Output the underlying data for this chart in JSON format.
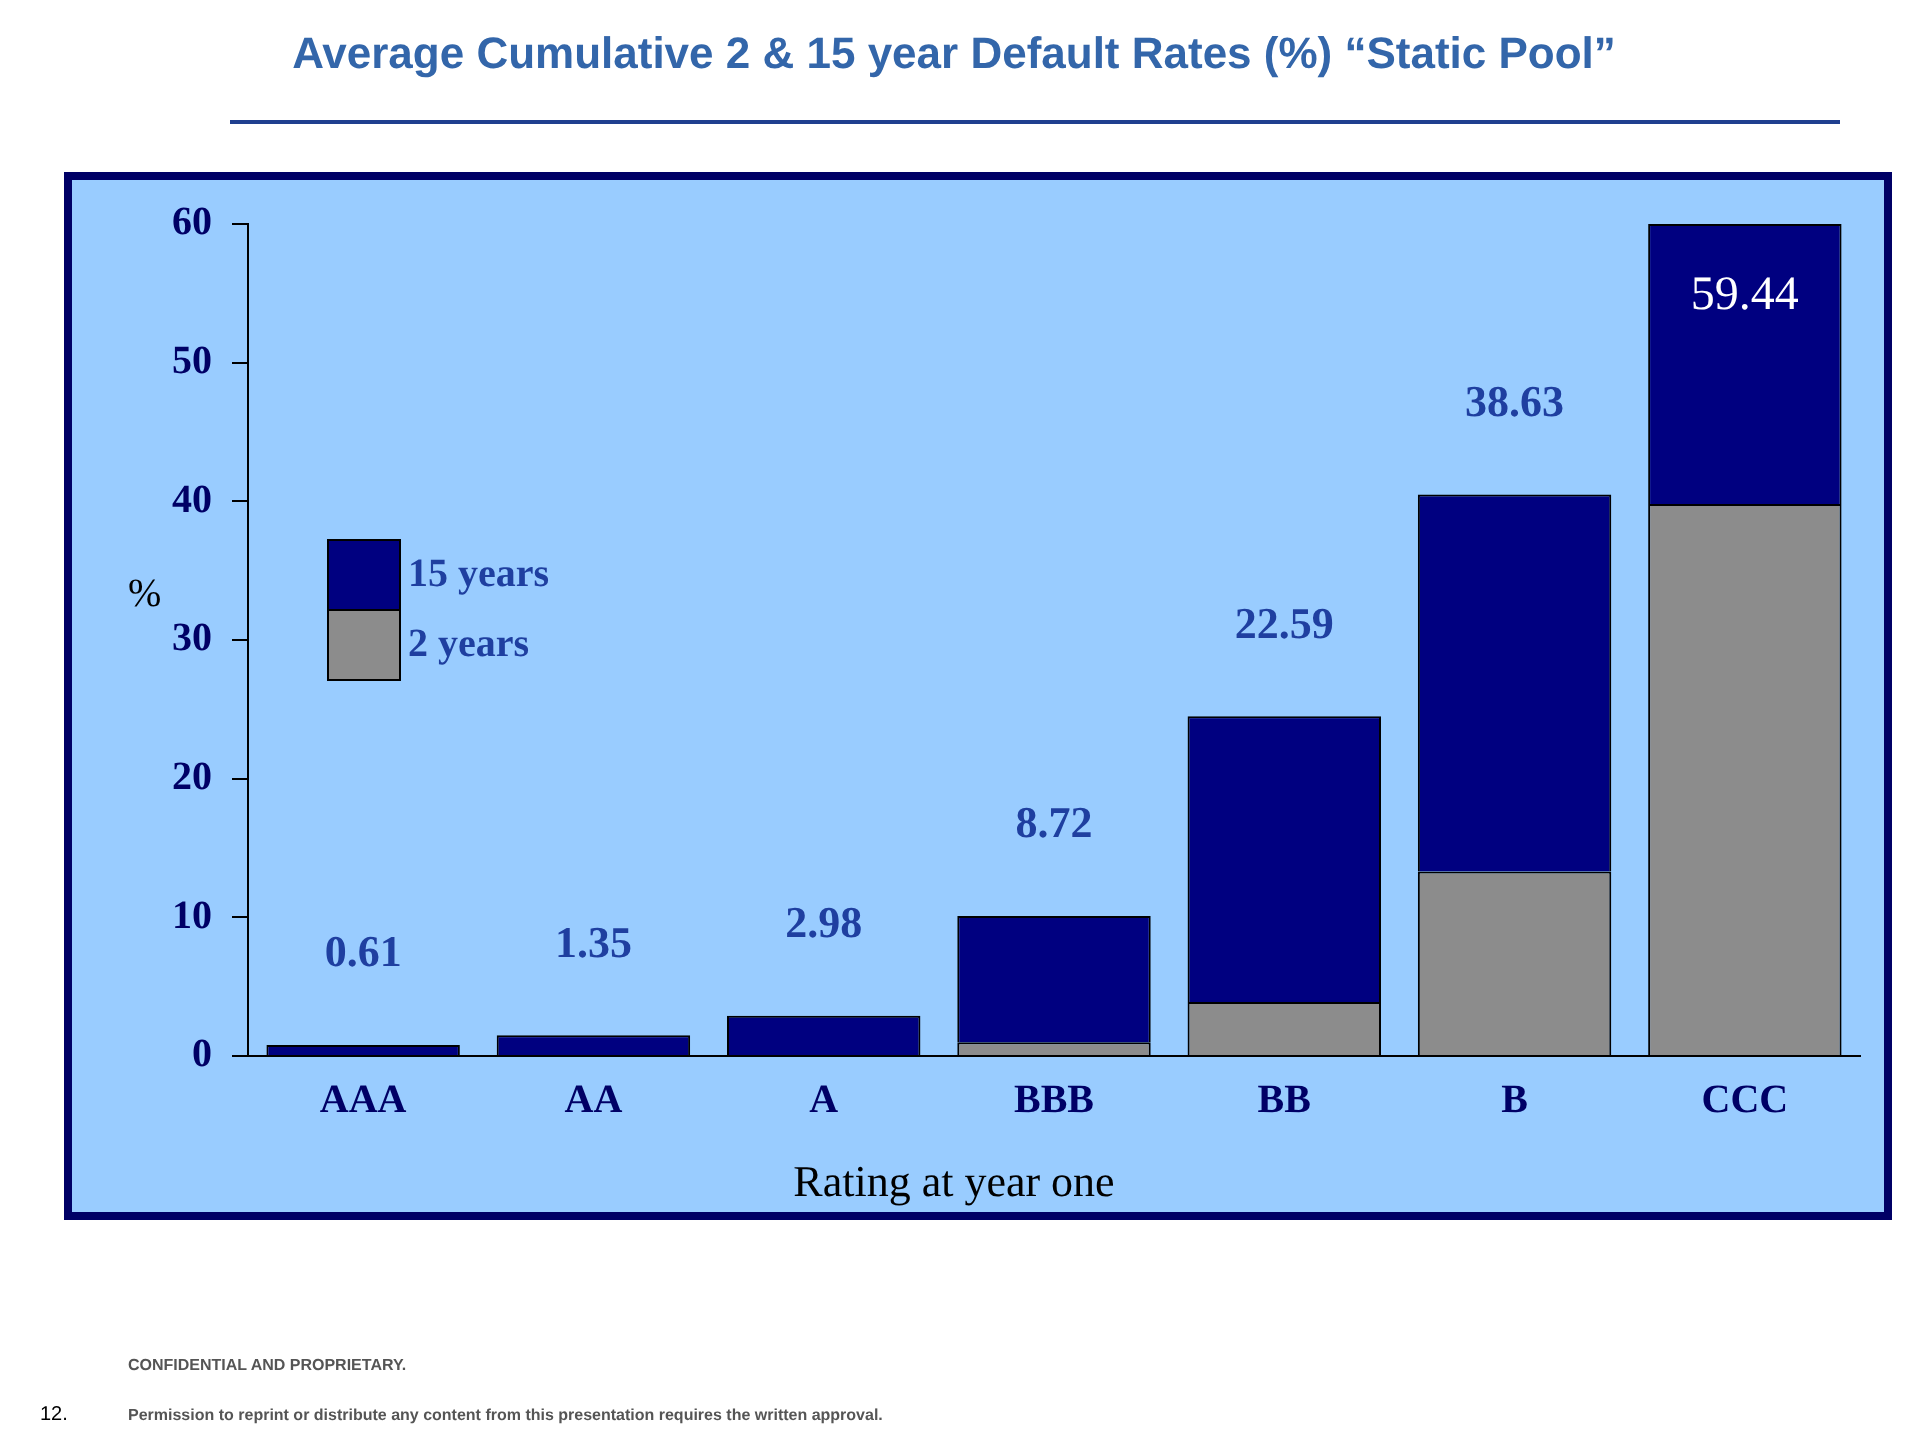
{
  "chart_data": {
    "type": "bar",
    "title": "Average Cumulative 2 & 15 year Default Rates (%) “Static Pool”",
    "xlabel": "Rating at year one",
    "ylabel": "%",
    "categories": [
      "AAA",
      "AA",
      "A",
      "BBB",
      "BB",
      "B",
      "CCC"
    ],
    "stacked": true,
    "series": [
      {
        "name": "2 years",
        "color": "#8c8c8c",
        "values": [
          0,
          0,
          null,
          1.0,
          3.9,
          13.3,
          39.8
        ]
      },
      {
        "name": "15 years",
        "color": "#000080",
        "values": [
          0.8,
          1.5,
          2.9,
          9.1,
          20.6,
          27.2,
          20.2
        ]
      }
    ],
    "ylim": [
      0,
      60
    ],
    "yticks": [
      0,
      10,
      20,
      30,
      40,
      50,
      60
    ],
    "grid": false,
    "legend": "left",
    "annotations": [
      "0.61",
      "1.35",
      "2.98",
      "8.72",
      "22.59",
      "38.63",
      "59.44",
      "CONFIDENTIAL AND PROPRIETARY.",
      "12.",
      "Permission to reprint or distribute any content from this presentation requires the written approval."
    ]
  }
}
